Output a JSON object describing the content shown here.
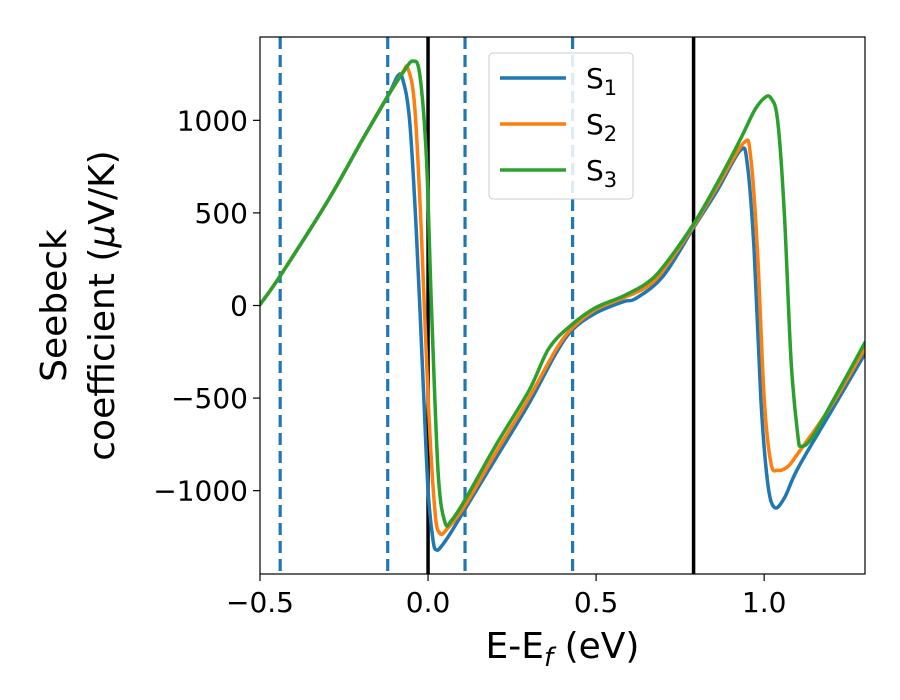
{
  "chart_data": {
    "type": "line",
    "xlabel": {
      "main": "E-E",
      "sub": "f",
      "unit": " (eV)"
    },
    "ylabel": {
      "line1": "Seebeck",
      "line2": "coefficient  (",
      "mu": "μ",
      "line2_end": "V/K)"
    },
    "xlim": [
      -0.5,
      1.3
    ],
    "ylim": [
      -1450,
      1450
    ],
    "xticks": [
      -0.5,
      0.0,
      0.5,
      1.0
    ],
    "xtick_labels": [
      "−0.5",
      "0.0",
      "0.5",
      "1.0"
    ],
    "yticks": [
      -1000,
      -500,
      0,
      500,
      1000
    ],
    "ytick_labels": [
      "−1000",
      "−500",
      "0",
      "500",
      "1000"
    ],
    "grid": false,
    "legend_position": "top-center",
    "vertical_lines": [
      {
        "x": -0.44,
        "style": "dashed",
        "color": "#1f77b4"
      },
      {
        "x": -0.12,
        "style": "dashed",
        "color": "#1f77b4"
      },
      {
        "x": 0.11,
        "style": "dashed",
        "color": "#1f77b4"
      },
      {
        "x": 0.43,
        "style": "dashed",
        "color": "#1f77b4"
      },
      {
        "x": 0.0,
        "style": "solid",
        "color": "#000000"
      },
      {
        "x": 0.79,
        "style": "solid",
        "color": "#000000"
      }
    ],
    "series": [
      {
        "name": "S",
        "sub": "1",
        "color": "#1f77b4",
        "points": [
          [
            -0.5,
            5
          ],
          [
            -0.44,
            160
          ],
          [
            -0.3,
            560
          ],
          [
            -0.2,
            880
          ],
          [
            -0.12,
            1130
          ],
          [
            -0.09,
            1240
          ],
          [
            -0.075,
            1220
          ],
          [
            -0.055,
            1000
          ],
          [
            -0.035,
            400
          ],
          [
            -0.015,
            -400
          ],
          [
            0.0,
            -1000
          ],
          [
            0.015,
            -1270
          ],
          [
            0.025,
            -1320
          ],
          [
            0.04,
            -1300
          ],
          [
            0.07,
            -1220
          ],
          [
            0.11,
            -1100
          ],
          [
            0.2,
            -830
          ],
          [
            0.3,
            -530
          ],
          [
            0.38,
            -260
          ],
          [
            0.43,
            -130
          ],
          [
            0.5,
            -40
          ],
          [
            0.58,
            20
          ],
          [
            0.62,
            40
          ],
          [
            0.7,
            160
          ],
          [
            0.79,
            420
          ],
          [
            0.86,
            620
          ],
          [
            0.93,
            840
          ],
          [
            0.95,
            760
          ],
          [
            0.97,
            300
          ],
          [
            0.99,
            -500
          ],
          [
            1.01,
            -950
          ],
          [
            1.03,
            -1090
          ],
          [
            1.06,
            -1040
          ],
          [
            1.1,
            -880
          ],
          [
            1.2,
            -570
          ],
          [
            1.3,
            -260
          ]
        ]
      },
      {
        "name": "S",
        "sub": "2",
        "color": "#ff7f0e",
        "points": [
          [
            -0.5,
            5
          ],
          [
            -0.44,
            160
          ],
          [
            -0.3,
            560
          ],
          [
            -0.2,
            880
          ],
          [
            -0.12,
            1130
          ],
          [
            -0.075,
            1260
          ],
          [
            -0.06,
            1280
          ],
          [
            -0.04,
            1080
          ],
          [
            -0.02,
            400
          ],
          [
            0.0,
            -500
          ],
          [
            0.02,
            -1100
          ],
          [
            0.035,
            -1230
          ],
          [
            0.06,
            -1200
          ],
          [
            0.11,
            -1080
          ],
          [
            0.2,
            -800
          ],
          [
            0.3,
            -500
          ],
          [
            0.38,
            -240
          ],
          [
            0.43,
            -120
          ],
          [
            0.5,
            -20
          ],
          [
            0.58,
            40
          ],
          [
            0.65,
            100
          ],
          [
            0.7,
            190
          ],
          [
            0.79,
            430
          ],
          [
            0.86,
            640
          ],
          [
            0.94,
            880
          ],
          [
            0.96,
            800
          ],
          [
            0.98,
            300
          ],
          [
            1.0,
            -500
          ],
          [
            1.02,
            -850
          ],
          [
            1.04,
            -890
          ],
          [
            1.07,
            -870
          ],
          [
            1.1,
            -800
          ],
          [
            1.2,
            -540
          ],
          [
            1.3,
            -230
          ]
        ]
      },
      {
        "name": "S",
        "sub": "3",
        "color": "#2ca02c",
        "points": [
          [
            -0.5,
            5
          ],
          [
            -0.44,
            160
          ],
          [
            -0.3,
            560
          ],
          [
            -0.2,
            880
          ],
          [
            -0.12,
            1130
          ],
          [
            -0.07,
            1270
          ],
          [
            -0.045,
            1320
          ],
          [
            -0.025,
            1250
          ],
          [
            -0.005,
            800
          ],
          [
            0.01,
            0
          ],
          [
            0.03,
            -900
          ],
          [
            0.05,
            -1170
          ],
          [
            0.07,
            -1160
          ],
          [
            0.11,
            -1050
          ],
          [
            0.2,
            -760
          ],
          [
            0.3,
            -460
          ],
          [
            0.36,
            -230
          ],
          [
            0.43,
            -100
          ],
          [
            0.5,
            -10
          ],
          [
            0.58,
            50
          ],
          [
            0.65,
            120
          ],
          [
            0.7,
            210
          ],
          [
            0.79,
            440
          ],
          [
            0.86,
            660
          ],
          [
            0.93,
            900
          ],
          [
            0.97,
            1050
          ],
          [
            1.0,
            1120
          ],
          [
            1.02,
            1120
          ],
          [
            1.04,
            1000
          ],
          [
            1.06,
            500
          ],
          [
            1.08,
            -300
          ],
          [
            1.1,
            -700
          ],
          [
            1.11,
            -760
          ],
          [
            1.14,
            -720
          ],
          [
            1.2,
            -530
          ],
          [
            1.3,
            -200
          ]
        ]
      }
    ]
  }
}
